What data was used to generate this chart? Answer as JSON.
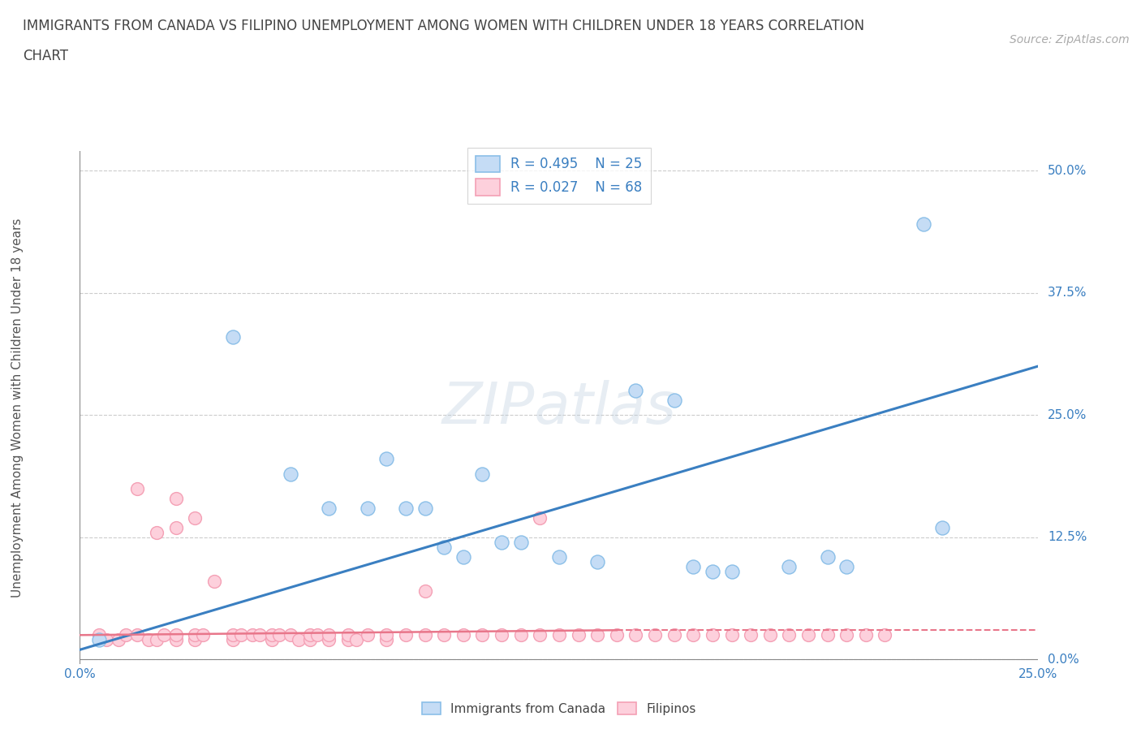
{
  "title_line1": "IMMIGRANTS FROM CANADA VS FILIPINO UNEMPLOYMENT AMONG WOMEN WITH CHILDREN UNDER 18 YEARS CORRELATION",
  "title_line2": "CHART",
  "source": "Source: ZipAtlas.com",
  "xlim": [
    0.0,
    0.25
  ],
  "ylim": [
    -0.005,
    0.52
  ],
  "legend_r1": "R = 0.495",
  "legend_n1": "N = 25",
  "legend_r2": "R = 0.027",
  "legend_n2": "N = 68",
  "canada_color": "#8bbfe8",
  "filipino_color": "#f4a0b5",
  "canada_fill": "#c5dcf5",
  "filipino_fill": "#fdd0dc",
  "line_canada_color": "#3a7fc1",
  "line_filipino_color": "#e8768a",
  "canada_points": [
    [
      0.005,
      0.02
    ],
    [
      0.04,
      0.33
    ],
    [
      0.055,
      0.19
    ],
    [
      0.065,
      0.155
    ],
    [
      0.075,
      0.155
    ],
    [
      0.08,
      0.205
    ],
    [
      0.085,
      0.155
    ],
    [
      0.09,
      0.155
    ],
    [
      0.095,
      0.115
    ],
    [
      0.1,
      0.105
    ],
    [
      0.105,
      0.19
    ],
    [
      0.11,
      0.12
    ],
    [
      0.115,
      0.12
    ],
    [
      0.125,
      0.105
    ],
    [
      0.135,
      0.1
    ],
    [
      0.145,
      0.275
    ],
    [
      0.155,
      0.265
    ],
    [
      0.16,
      0.095
    ],
    [
      0.165,
      0.09
    ],
    [
      0.17,
      0.09
    ],
    [
      0.185,
      0.095
    ],
    [
      0.195,
      0.105
    ],
    [
      0.2,
      0.095
    ],
    [
      0.22,
      0.445
    ],
    [
      0.225,
      0.135
    ]
  ],
  "filipino_points": [
    [
      0.005,
      0.025
    ],
    [
      0.007,
      0.02
    ],
    [
      0.01,
      0.02
    ],
    [
      0.012,
      0.025
    ],
    [
      0.015,
      0.025
    ],
    [
      0.015,
      0.175
    ],
    [
      0.018,
      0.02
    ],
    [
      0.02,
      0.02
    ],
    [
      0.02,
      0.13
    ],
    [
      0.022,
      0.025
    ],
    [
      0.025,
      0.02
    ],
    [
      0.025,
      0.025
    ],
    [
      0.025,
      0.135
    ],
    [
      0.025,
      0.165
    ],
    [
      0.03,
      0.02
    ],
    [
      0.03,
      0.025
    ],
    [
      0.03,
      0.145
    ],
    [
      0.032,
      0.025
    ],
    [
      0.035,
      0.08
    ],
    [
      0.04,
      0.02
    ],
    [
      0.04,
      0.025
    ],
    [
      0.042,
      0.025
    ],
    [
      0.045,
      0.025
    ],
    [
      0.047,
      0.025
    ],
    [
      0.05,
      0.02
    ],
    [
      0.05,
      0.025
    ],
    [
      0.052,
      0.025
    ],
    [
      0.055,
      0.025
    ],
    [
      0.057,
      0.02
    ],
    [
      0.06,
      0.02
    ],
    [
      0.06,
      0.025
    ],
    [
      0.062,
      0.025
    ],
    [
      0.065,
      0.02
    ],
    [
      0.065,
      0.025
    ],
    [
      0.07,
      0.02
    ],
    [
      0.07,
      0.025
    ],
    [
      0.072,
      0.02
    ],
    [
      0.075,
      0.025
    ],
    [
      0.08,
      0.02
    ],
    [
      0.08,
      0.025
    ],
    [
      0.085,
      0.025
    ],
    [
      0.09,
      0.025
    ],
    [
      0.09,
      0.07
    ],
    [
      0.095,
      0.025
    ],
    [
      0.1,
      0.025
    ],
    [
      0.105,
      0.025
    ],
    [
      0.11,
      0.025
    ],
    [
      0.115,
      0.025
    ],
    [
      0.12,
      0.025
    ],
    [
      0.12,
      0.145
    ],
    [
      0.125,
      0.025
    ],
    [
      0.13,
      0.025
    ],
    [
      0.135,
      0.025
    ],
    [
      0.14,
      0.025
    ],
    [
      0.145,
      0.025
    ],
    [
      0.15,
      0.025
    ],
    [
      0.155,
      0.025
    ],
    [
      0.16,
      0.025
    ],
    [
      0.165,
      0.025
    ],
    [
      0.17,
      0.025
    ],
    [
      0.175,
      0.025
    ],
    [
      0.18,
      0.025
    ],
    [
      0.185,
      0.025
    ],
    [
      0.19,
      0.025
    ],
    [
      0.195,
      0.025
    ],
    [
      0.2,
      0.025
    ],
    [
      0.205,
      0.025
    ],
    [
      0.21,
      0.025
    ]
  ],
  "canada_trendline": [
    [
      0.0,
      0.01
    ],
    [
      0.25,
      0.3
    ]
  ],
  "filipino_trendline_solid": [
    [
      0.0,
      0.025
    ],
    [
      0.14,
      0.03
    ]
  ],
  "filipino_trendline_dashed": [
    [
      0.14,
      0.03
    ],
    [
      0.25,
      0.03
    ]
  ],
  "ylabel": "Unemployment Among Women with Children Under 18 years",
  "background_color": "#ffffff",
  "grid_color": "#cccccc"
}
